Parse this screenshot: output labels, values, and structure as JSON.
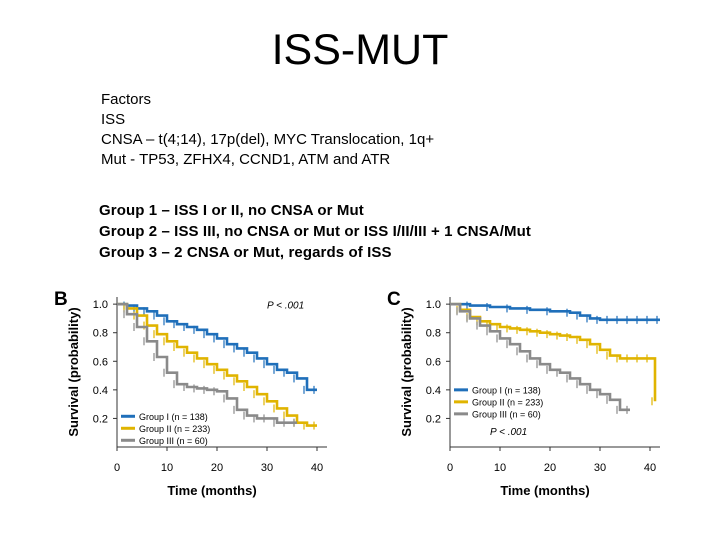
{
  "title": "ISS-MUT",
  "factors": [
    "Factors",
    "ISS",
    "CNSA – t(4;14), 17p(del), MYC Translocation, 1q+",
    "Mut - TP53, ZFHX4, CCND1, ATM and ATR"
  ],
  "groups": [
    "Group 1 – ISS I or II, no CNSA or Mut",
    "Group 2 – ISS III, no CNSA or Mut or ISS I/II/III + 1 CNSA/Mut",
    "Group 3 – 2 CNSA or Mut, regards of ISS"
  ],
  "colors": {
    "group1": "#1f6fba",
    "group2": "#e0b400",
    "group3": "#8a8a8a"
  },
  "chart_data": [
    {
      "type": "line",
      "step": true,
      "panel_label": "B",
      "pvalue": "P < .001",
      "xlabel": "Time (months)",
      "ylabel": "Survival (probability)",
      "xlim": [
        0,
        42
      ],
      "ylim": [
        0,
        1.05
      ],
      "xticks": [
        0,
        10,
        20,
        30,
        40
      ],
      "yticks": [
        0.2,
        0.4,
        0.6,
        0.8,
        1.0
      ],
      "xtick_labels": [
        "0",
        "10",
        "20",
        "30",
        "40"
      ],
      "ytick_labels": [
        "0.2",
        "0.4",
        "0.6",
        "0.8",
        "1.0"
      ],
      "series": [
        {
          "name": "Group I (n = 138)",
          "color_key": "group1",
          "x": [
            0,
            2,
            4,
            6,
            8,
            10,
            12,
            14,
            16,
            18,
            20,
            22,
            24,
            26,
            28,
            30,
            32,
            34,
            36,
            38,
            40
          ],
          "y": [
            1.0,
            0.99,
            0.97,
            0.95,
            0.92,
            0.88,
            0.86,
            0.84,
            0.82,
            0.79,
            0.76,
            0.72,
            0.69,
            0.66,
            0.62,
            0.58,
            0.54,
            0.52,
            0.48,
            0.4,
            0.4
          ]
        },
        {
          "name": "Group II (n = 233)",
          "color_key": "group2",
          "x": [
            0,
            2,
            4,
            6,
            8,
            10,
            12,
            14,
            16,
            18,
            20,
            22,
            24,
            26,
            28,
            30,
            32,
            34,
            36,
            38,
            40
          ],
          "y": [
            1.0,
            0.97,
            0.92,
            0.85,
            0.79,
            0.74,
            0.7,
            0.66,
            0.62,
            0.58,
            0.54,
            0.5,
            0.46,
            0.42,
            0.37,
            0.32,
            0.27,
            0.22,
            0.17,
            0.15,
            0.15
          ]
        },
        {
          "name": "Group III (n = 60)",
          "color_key": "group3",
          "x": [
            0,
            2,
            4,
            6,
            8,
            10,
            12,
            14,
            16,
            18,
            20,
            22,
            24,
            26,
            28,
            30,
            32,
            34,
            36
          ],
          "y": [
            1.0,
            0.93,
            0.84,
            0.74,
            0.63,
            0.52,
            0.44,
            0.42,
            0.41,
            0.4,
            0.39,
            0.34,
            0.26,
            0.22,
            0.2,
            0.2,
            0.17,
            0.17,
            0.17
          ]
        }
      ]
    },
    {
      "type": "line",
      "step": true,
      "panel_label": "C",
      "pvalue": "P < .001",
      "xlabel": "Time (months)",
      "ylabel": "Survival (probability)",
      "xlim": [
        0,
        42
      ],
      "ylim": [
        0,
        1.05
      ],
      "xticks": [
        0,
        10,
        20,
        30,
        40
      ],
      "yticks": [
        0.2,
        0.4,
        0.6,
        0.8,
        1.0
      ],
      "xtick_labels": [
        "0",
        "10",
        "20",
        "30",
        "40"
      ],
      "ytick_labels": [
        "0.2",
        "0.4",
        "0.6",
        "0.8",
        "1.0"
      ],
      "series": [
        {
          "name": "Group I (n = 138)",
          "color_key": "group1",
          "x": [
            0,
            4,
            8,
            12,
            16,
            20,
            24,
            26,
            28,
            30,
            32,
            34,
            36,
            38,
            40,
            42
          ],
          "y": [
            1.0,
            0.99,
            0.98,
            0.97,
            0.96,
            0.95,
            0.94,
            0.92,
            0.9,
            0.89,
            0.89,
            0.89,
            0.89,
            0.89,
            0.89,
            0.89
          ]
        },
        {
          "name": "Group II (n = 233)",
          "color_key": "group2",
          "x": [
            0,
            2,
            4,
            6,
            8,
            10,
            12,
            14,
            16,
            18,
            20,
            22,
            24,
            26,
            28,
            30,
            32,
            34,
            36,
            38,
            40,
            41
          ],
          "y": [
            1.0,
            0.96,
            0.91,
            0.88,
            0.86,
            0.84,
            0.83,
            0.82,
            0.81,
            0.8,
            0.79,
            0.78,
            0.77,
            0.75,
            0.72,
            0.68,
            0.64,
            0.62,
            0.62,
            0.62,
            0.62,
            0.32
          ]
        },
        {
          "name": "Group III (n = 60)",
          "color_key": "group3",
          "x": [
            0,
            2,
            4,
            6,
            8,
            10,
            12,
            14,
            16,
            18,
            20,
            22,
            24,
            26,
            28,
            30,
            32,
            34,
            36
          ],
          "y": [
            1.0,
            0.95,
            0.9,
            0.85,
            0.81,
            0.76,
            0.72,
            0.67,
            0.62,
            0.58,
            0.54,
            0.52,
            0.48,
            0.44,
            0.4,
            0.37,
            0.33,
            0.26,
            0.26
          ]
        }
      ]
    }
  ]
}
